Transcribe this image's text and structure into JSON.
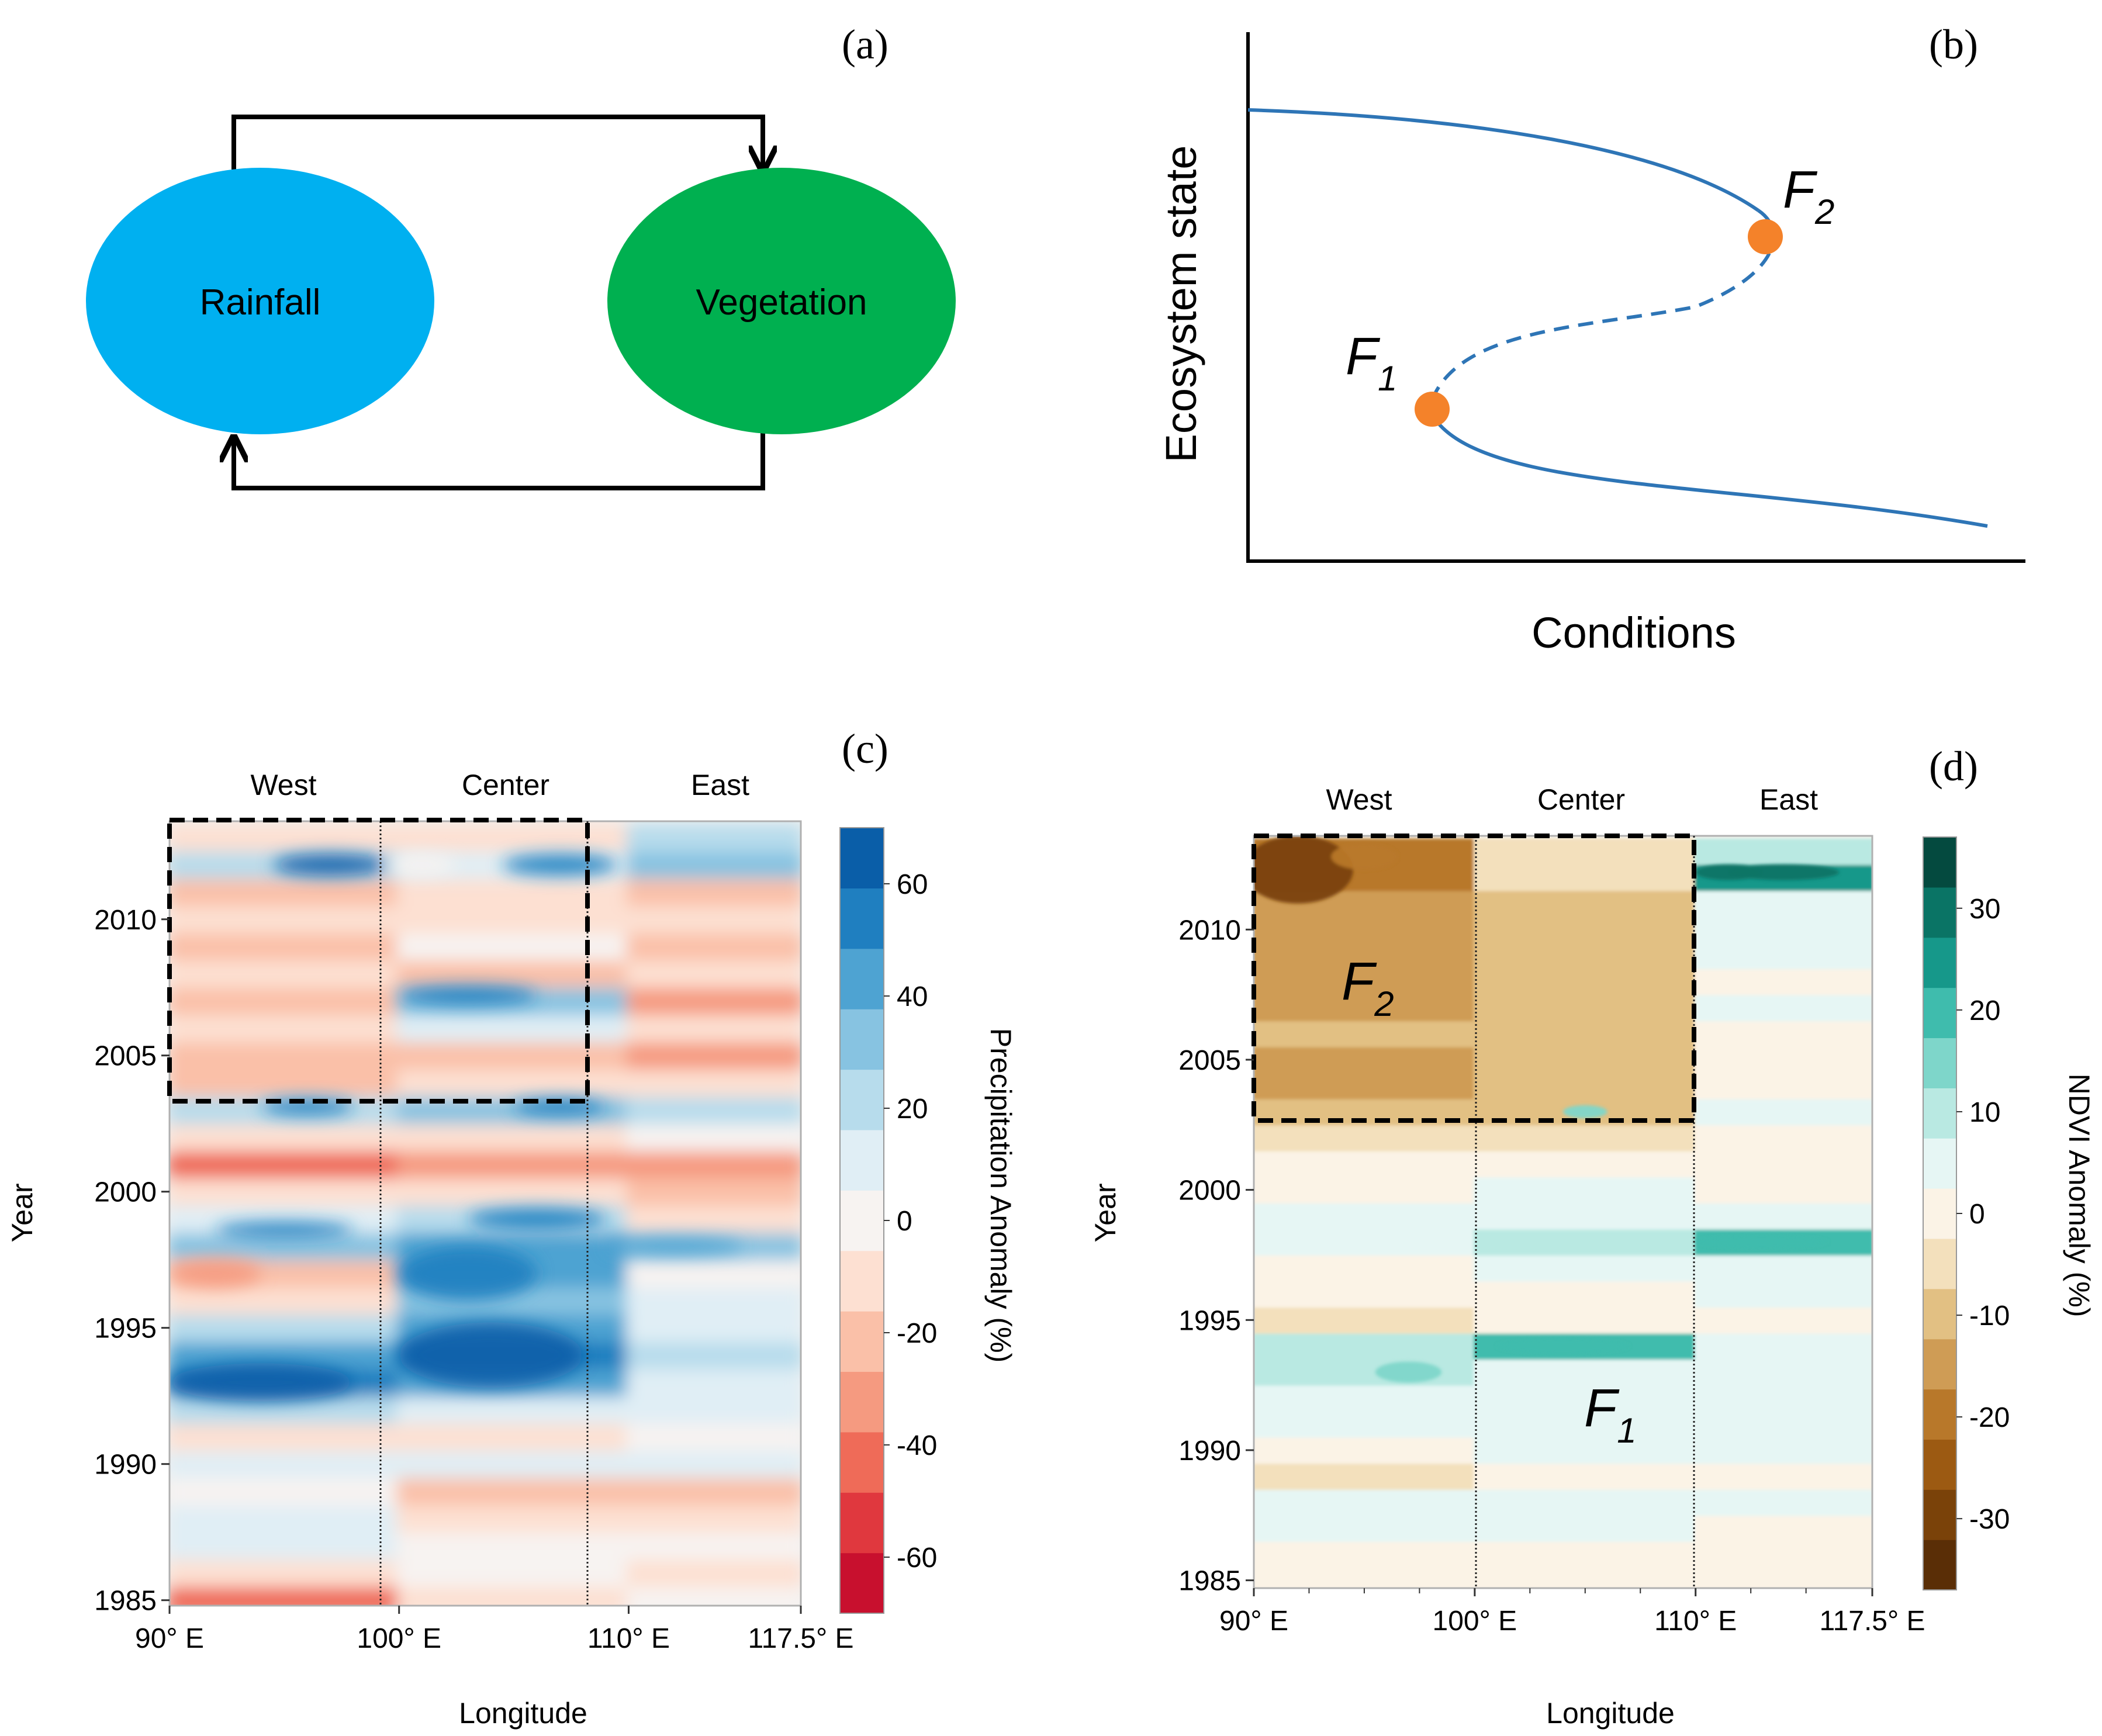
{
  "panels": {
    "a": {
      "label": "(a)",
      "left": "Rainfall",
      "right": "Vegetation",
      "colors": {
        "rainfall": "#00b0f0",
        "vegetation": "#00b050"
      }
    },
    "b": {
      "label": "(b)",
      "ylabel": "Ecosystem state",
      "xlabel": "Conditions",
      "f1": {
        "letter": "F",
        "sub": "1"
      },
      "f2": {
        "letter": "F",
        "sub": "2"
      },
      "colors": {
        "curve": "#2e75b6",
        "point": "#f4822a"
      }
    },
    "c": {
      "label": "(c)",
      "regions": [
        "West",
        "Center",
        "East"
      ],
      "colorbar_label": "Precipitation  Anomaly (%)"
    },
    "d": {
      "label": "(d)",
      "regions": [
        "West",
        "Center",
        "East"
      ],
      "colorbar_label": "NDVI  Anomaly (%)",
      "f1": {
        "letter": "F",
        "sub": "1"
      },
      "f2": {
        "letter": "F",
        "sub": "2"
      }
    }
  },
  "chart_data": [
    {
      "type": "line",
      "panel": "b",
      "title": "",
      "xlabel": "Conditions",
      "ylabel": "Ecosystem state",
      "series": [
        {
          "name": "upper stable branch",
          "style": "solid"
        },
        {
          "name": "unstable branch",
          "style": "dashed"
        },
        {
          "name": "lower stable branch",
          "style": "solid"
        }
      ],
      "annotations": [
        "F1",
        "F2"
      ]
    },
    {
      "type": "heatmap",
      "panel": "c",
      "xlabel": "Longitude",
      "ylabel": "Year",
      "x_ticks": [
        "90° E",
        "100° E",
        "110° E",
        "117.5° E"
      ],
      "y_ticks": [
        "1985",
        "1990",
        "1995",
        "2000",
        "2005",
        "2010"
      ],
      "xlim": [
        90,
        117.5
      ],
      "ylim": [
        1984.8,
        2013.6
      ],
      "regions": [
        "West",
        "Center",
        "East"
      ],
      "colorbar": {
        "label": "Precipitation  Anomaly (%)",
        "ticks": [
          60,
          40,
          20,
          0,
          -20,
          -40,
          -60
        ],
        "range": [
          -70,
          70
        ]
      },
      "highlight_box": {
        "lon": [
          90,
          110
        ],
        "year": [
          2003.2,
          2013.6
        ]
      }
    },
    {
      "type": "heatmap",
      "panel": "d",
      "xlabel": "Longitude",
      "ylabel": "Year",
      "x_ticks": [
        "90° E",
        "100° E",
        "110° E",
        "117.5° E"
      ],
      "y_ticks": [
        "1985",
        "1990",
        "1995",
        "2000",
        "2005",
        "2010"
      ],
      "xlim": [
        90,
        118
      ],
      "ylim": [
        1984.7,
        2013.6
      ],
      "regions": [
        "West",
        "Center",
        "East"
      ],
      "colorbar": {
        "label": "NDVI  Anomaly (%)",
        "ticks": [
          30,
          20,
          10,
          0,
          -10,
          -20,
          -30
        ],
        "range": [
          -37,
          37
        ]
      },
      "highlight_box": {
        "lon": [
          90,
          110
        ],
        "year": [
          2002.6,
          2013.6
        ]
      },
      "annotations": [
        "F2",
        "F1"
      ]
    }
  ]
}
